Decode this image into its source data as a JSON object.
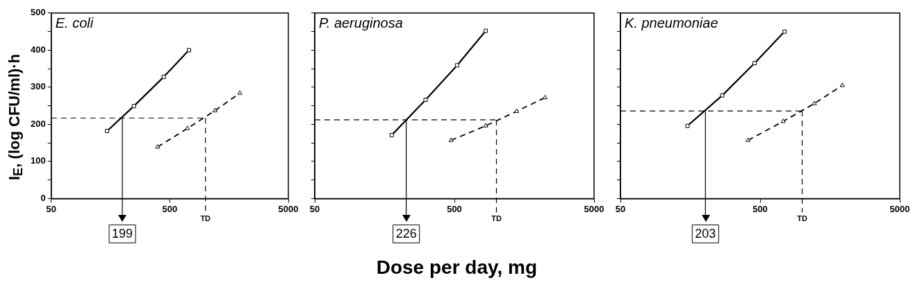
{
  "chart_data": [
    {
      "type": "line",
      "ylabel": "I$_{E}$, (log CFU/ml)·h",
      "annotations": [
        "E. coli"
      ],
      "xlim": [
        50,
        5000
      ],
      "xticks": [
        50,
        500,
        5000
      ],
      "log": "x",
      "ylim": [
        0,
        500
      ],
      "yticks": [
        0,
        {
          "value": 50,
          "label": null
        },
        100,
        {
          "value": 150,
          "label": null
        },
        200,
        {
          "value": 250,
          "label": null
        },
        300,
        {
          "value": 350,
          "label": null
        },
        400,
        {
          "value": 450,
          "label": null
        },
        500
      ],
      "grid": false,
      "legend": false,
      "series": [
        {
          "color": "#000000",
          "marker": "square",
          "line_style": "solid",
          "x": [
            148,
            249,
            445,
            726
          ],
          "values": [
            182,
            249,
            328,
            400
          ]
        },
        {
          "color": "#000000",
          "marker": "triangle",
          "line_style": "dashed",
          "x": [
            395,
            705,
            1203,
            1950
          ],
          "values": [
            139,
            189,
            237,
            284
          ]
        }
      ],
      "ref_lines": [
        {
          "axis": "y",
          "value": 217,
          "line_style": "dashed"
        },
        {
          "axis": "x",
          "value": 1000,
          "label": "TD",
          "line_style": "dashed"
        },
        {
          "axis": "x",
          "value": 199,
          "label": "199",
          "line_style": "solid"
        }
      ]
    },
    {
      "type": "line",
      "xlabel": "Dose per day, mg",
      "annotations": [
        "P. aeruginosa"
      ],
      "xlim": [
        50,
        5000
      ],
      "xticks": [
        50,
        500,
        5000
      ],
      "log": "x",
      "ylim": [
        0,
        500
      ],
      "yticks": [
        0,
        {
          "value": 50,
          "label": null
        },
        100,
        {
          "value": 150,
          "label": null
        },
        200,
        {
          "value": 250,
          "label": null
        },
        300,
        {
          "value": 350,
          "label": null
        },
        400,
        {
          "value": 450,
          "label": null
        },
        500
      ],
      "tick_labels": "x",
      "grid": false,
      "legend": false,
      "series": [
        {
          "color": "#000000",
          "marker": "square",
          "line_style": "solid",
          "x": [
            178,
            311,
            523,
            838
          ],
          "values": [
            171,
            266,
            359,
            452
          ]
        },
        {
          "color": "#000000",
          "marker": "triangle",
          "line_style": "dashed",
          "x": [
            473,
            838,
            1393,
            2228
          ],
          "values": [
            157,
            196,
            235,
            272
          ]
        }
      ],
      "ref_lines": [
        {
          "axis": "y",
          "value": 212,
          "line_style": "dashed"
        },
        {
          "axis": "x",
          "value": 1000,
          "label": "TD",
          "line_style": "dashed"
        },
        {
          "axis": "x",
          "value": 226,
          "label": "226",
          "line_style": "solid"
        }
      ]
    },
    {
      "type": "line",
      "annotations": [
        "K. pneumoniae"
      ],
      "xlim": [
        50,
        5000
      ],
      "xticks": [
        50,
        500,
        5000
      ],
      "log": "x",
      "ylim": [
        0,
        500
      ],
      "yticks": [
        0,
        {
          "value": 50,
          "label": null
        },
        100,
        {
          "value": 150,
          "label": null
        },
        200,
        {
          "value": 250,
          "label": null
        },
        300,
        {
          "value": 350,
          "label": null
        },
        400,
        {
          "value": 450,
          "label": null
        },
        500
      ],
      "tick_labels": "x",
      "grid": false,
      "legend": false,
      "series": [
        {
          "color": "#000000",
          "marker": "square",
          "line_style": "solid",
          "x": [
            151,
            268,
            457,
            748
          ],
          "values": [
            196,
            278,
            365,
            450
          ]
        },
        {
          "color": "#000000",
          "marker": "triangle",
          "line_style": "dashed",
          "x": [
            410,
            732,
            1222,
            1940
          ],
          "values": [
            157,
            208,
            256,
            305
          ]
        }
      ],
      "ref_lines": [
        {
          "axis": "y",
          "value": 236,
          "line_style": "dashed"
        },
        {
          "axis": "x",
          "value": 1000,
          "label": "TD",
          "line_style": "dashed"
        },
        {
          "axis": "x",
          "value": 203,
          "label": "203",
          "line_style": "solid"
        }
      ]
    }
  ]
}
